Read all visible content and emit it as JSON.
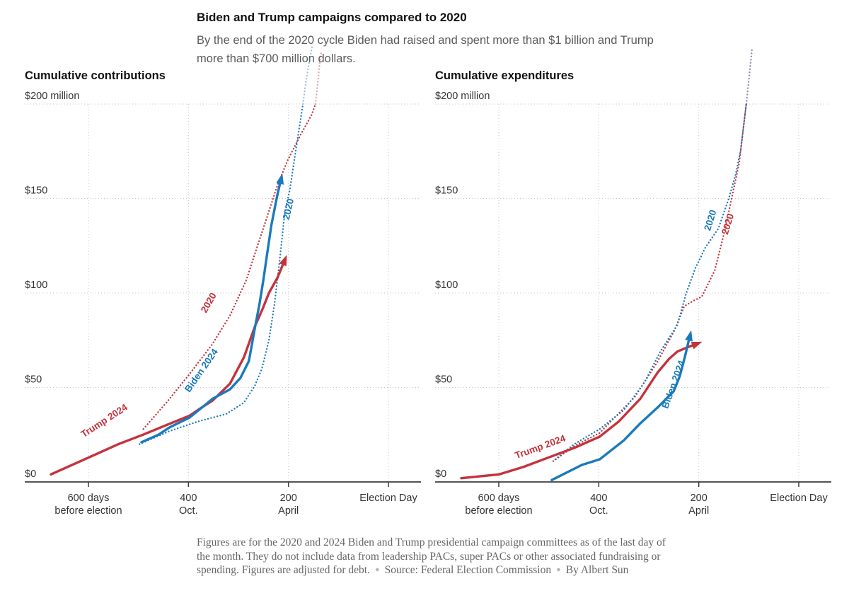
{
  "header": {
    "title": "Biden and Trump campaigns compared to 2020",
    "subtitle": "By the end of the 2020 cycle Biden had raised and spent more than $1 billion and Trump more than $700 million dollars."
  },
  "footer": {
    "note": "Figures are for the 2020 and 2024 Biden and Trump presidential campaign committees as of the last day of the month. They do not include data from leadership PACs, super PACs or other associated fundraising or spending. Figures are adjusted for debt.",
    "bullet": "●",
    "source": "Source: Federal Election Commission",
    "byline": "By Albert Sun"
  },
  "colors": {
    "red": "#c4333c",
    "blue": "#1a7abc",
    "grid": "#c7c7c7",
    "axis": "#3c3c3c",
    "tick_text": "#333333"
  },
  "chart_data": [
    {
      "type": "line",
      "title": "Cumulative contributions",
      "x_unit": "days before election",
      "y_unit": "million USD",
      "ylim": [
        0,
        200
      ],
      "xlim_days": [
        727,
        0
      ],
      "y_axis": {
        "ticks": [
          {
            "v": 0,
            "label": "$0"
          },
          {
            "v": 50,
            "label": "$50"
          },
          {
            "v": 100,
            "label": "$100"
          },
          {
            "v": 150,
            "label": "$150"
          },
          {
            "v": 200,
            "label": "$200 million"
          }
        ]
      },
      "x_axis": {
        "ticks": [
          {
            "d": 600,
            "label": "600 days",
            "sublabel": "before election"
          },
          {
            "d": 400,
            "label": "400",
            "sublabel": "Oct."
          },
          {
            "d": 200,
            "label": "200",
            "sublabel": "April"
          },
          {
            "d": 0,
            "label": "Election Day",
            "sublabel": ""
          }
        ]
      },
      "series": [
        {
          "name": "Trump 2020",
          "color": "red",
          "style": "dotted",
          "arrow": false,
          "points": [
            [
              490,
              28
            ],
            [
              444,
              42
            ],
            [
              398,
              57
            ],
            [
              352,
              73
            ],
            [
              317,
              88
            ],
            [
              284,
              107
            ],
            [
              263,
              124
            ],
            [
              243,
              140
            ],
            [
              222,
              157
            ],
            [
              202,
              170
            ],
            [
              175,
              184
            ],
            [
              154,
              194
            ],
            [
              146,
              200
            ]
          ],
          "fade_points": [
            [
              142,
              210
            ],
            [
              138,
              220
            ],
            [
              134,
              228
            ]
          ]
        },
        {
          "name": "Biden 2020",
          "color": "blue",
          "style": "dotted",
          "arrow": false,
          "points": [
            [
              498,
              20
            ],
            [
              437,
              27
            ],
            [
              381,
              32
            ],
            [
              324,
              36
            ],
            [
              289,
              42
            ],
            [
              267,
              51
            ],
            [
              253,
              60
            ],
            [
              239,
              75
            ],
            [
              228,
              94
            ],
            [
              218,
              116
            ],
            [
              207,
              143
            ],
            [
              197,
              155
            ],
            [
              185,
              176
            ],
            [
              171,
              200
            ]
          ],
          "fade_points": [
            [
              166,
              210
            ],
            [
              158,
              223
            ],
            [
              152,
              231
            ]
          ]
        },
        {
          "name": "Trump 2024",
          "color": "red",
          "style": "solid",
          "arrow": true,
          "points": [
            [
              675,
              4
            ],
            [
              599,
              13
            ],
            [
              540,
              20
            ],
            [
              491,
              25
            ],
            [
              445,
              30
            ],
            [
              398,
              35
            ],
            [
              370,
              40
            ],
            [
              352,
              43
            ],
            [
              317,
              52
            ],
            [
              289,
              66
            ],
            [
              266,
              83
            ],
            [
              251,
              92
            ],
            [
              239,
              100
            ],
            [
              222,
              108
            ],
            [
              208,
              117
            ]
          ]
        },
        {
          "name": "Biden 2024",
          "color": "blue",
          "style": "solid",
          "arrow": true,
          "points": [
            [
              494,
              21
            ],
            [
              460,
              25
            ],
            [
              437,
              29
            ],
            [
              398,
              34
            ],
            [
              370,
              40
            ],
            [
              352,
              44
            ],
            [
              317,
              49
            ],
            [
              296,
              55
            ],
            [
              279,
              64
            ],
            [
              266,
              83
            ],
            [
              258,
              94
            ],
            [
              250,
              107
            ],
            [
              243,
              120
            ],
            [
              234,
              136
            ],
            [
              222,
              152
            ],
            [
              215,
              160
            ]
          ]
        }
      ],
      "annotations": [
        {
          "text": "Trump 2024",
          "color": "red",
          "d": 565,
          "v": 31,
          "angle": -33
        },
        {
          "text": "Biden 2024",
          "color": "blue",
          "d": 369,
          "v": 58,
          "angle": -55
        },
        {
          "text": "2020",
          "color": "red",
          "d": 354,
          "v": 94,
          "angle": -60
        },
        {
          "text": "2020",
          "color": "blue",
          "d": 194,
          "v": 144,
          "angle": -77
        }
      ]
    },
    {
      "type": "line",
      "title": "Cumulative expenditures",
      "x_unit": "days before election",
      "y_unit": "million USD",
      "ylim": [
        0,
        200
      ],
      "xlim_days": [
        727,
        0
      ],
      "y_axis": {
        "ticks": [
          {
            "v": 0,
            "label": "$0"
          },
          {
            "v": 50,
            "label": "$50"
          },
          {
            "v": 100,
            "label": "$100"
          },
          {
            "v": 150,
            "label": "$150"
          },
          {
            "v": 200,
            "label": "$200 million"
          }
        ]
      },
      "x_axis": {
        "ticks": [
          {
            "d": 600,
            "label": "600 days",
            "sublabel": "before election"
          },
          {
            "d": 400,
            "label": "400",
            "sublabel": "Oct."
          },
          {
            "d": 200,
            "label": "200",
            "sublabel": "April"
          },
          {
            "d": 0,
            "label": "Election Day",
            "sublabel": ""
          }
        ]
      },
      "series": [
        {
          "name": "Trump 2020",
          "color": "red",
          "style": "dotted",
          "arrow": false,
          "points": [
            [
              491,
              11
            ],
            [
              449,
              19
            ],
            [
              398,
              26
            ],
            [
              328,
              45
            ],
            [
              284,
              63
            ],
            [
              249,
              80
            ],
            [
              229,
              93
            ],
            [
              210,
              96
            ],
            [
              194,
              98
            ],
            [
              168,
              112
            ],
            [
              147,
              134
            ],
            [
              136,
              148
            ],
            [
              119,
              169
            ],
            [
              105,
              200
            ]
          ],
          "fade_points": [
            [
              100,
              212
            ],
            [
              96,
              222
            ],
            [
              93,
              230
            ]
          ]
        },
        {
          "name": "Biden 2020",
          "color": "blue",
          "style": "dotted",
          "arrow": false,
          "points": [
            [
              487,
              12
            ],
            [
              449,
              20
            ],
            [
              398,
              28
            ],
            [
              350,
              38
            ],
            [
              310,
              52
            ],
            [
              277,
              69
            ],
            [
              243,
              83
            ],
            [
              225,
              100
            ],
            [
              207,
              113
            ],
            [
              187,
              124
            ],
            [
              161,
              134
            ],
            [
              140,
              150
            ],
            [
              126,
              163
            ],
            [
              116,
              176
            ],
            [
              105,
              200
            ]
          ],
          "fade_points": [
            [
              101,
              210
            ],
            [
              97,
              221
            ],
            [
              94,
              229
            ]
          ]
        },
        {
          "name": "Trump 2024",
          "color": "red",
          "style": "solid",
          "arrow": true,
          "points": [
            [
              675,
              2
            ],
            [
              599,
              4
            ],
            [
              550,
              8
            ],
            [
              500,
              13
            ],
            [
              449,
              18
            ],
            [
              398,
              24
            ],
            [
              360,
              32
            ],
            [
              317,
              44
            ],
            [
              282,
              58
            ],
            [
              260,
              65
            ],
            [
              243,
              69
            ],
            [
              225,
              71
            ],
            [
              205,
              73
            ]
          ]
        },
        {
          "name": "Biden 2024",
          "color": "blue",
          "style": "solid",
          "arrow": true,
          "points": [
            [
              494,
              1
            ],
            [
              434,
              9
            ],
            [
              398,
              12
            ],
            [
              350,
              22
            ],
            [
              317,
              31
            ],
            [
              280,
              40
            ],
            [
              250,
              48
            ],
            [
              238,
              56
            ],
            [
              228,
              66
            ],
            [
              218,
              77
            ]
          ]
        }
      ],
      "annotations": [
        {
          "text": "Trump 2024",
          "color": "red",
          "d": 515,
          "v": 17,
          "angle": -20
        },
        {
          "text": "Biden 2024",
          "color": "blue",
          "d": 245,
          "v": 51,
          "angle": -70
        },
        {
          "text": "2020",
          "color": "blue",
          "d": 171,
          "v": 138,
          "angle": -73
        },
        {
          "text": "2020",
          "color": "red",
          "d": 136,
          "v": 136,
          "angle": -73
        }
      ]
    }
  ]
}
